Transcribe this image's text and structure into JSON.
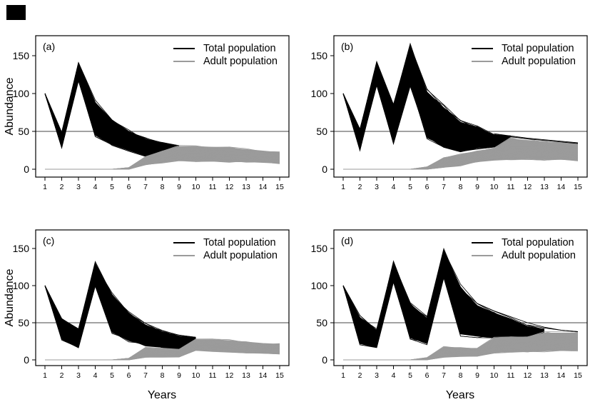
{
  "figure": {
    "ylabel": "Abundance",
    "xlabel": "Years",
    "background": "#ffffff",
    "reference_line_color": "#444444",
    "axis_color": "#000000"
  },
  "chart_data": [
    {
      "id": "a",
      "label": "(a)",
      "type": "line",
      "x_ticks": [
        1,
        2,
        3,
        4,
        5,
        6,
        7,
        8,
        9,
        10,
        11,
        12,
        13,
        14,
        15
      ],
      "y_ticks": [
        0,
        50,
        100,
        150
      ],
      "ylim": [
        0,
        175
      ],
      "reference_line_y": 50,
      "legend": [
        {
          "name": "Total population",
          "color": "#000000"
        },
        {
          "name": "Adult population",
          "color": "#9b9b9b"
        }
      ],
      "series": [
        {
          "name": "Total population",
          "color": "#000000",
          "kind": "ensemble-band",
          "x": [
            1,
            2,
            3,
            4,
            5,
            6,
            7,
            8,
            9
          ],
          "lower": [
            100,
            29,
            117,
            45,
            33,
            25,
            18,
            16,
            26
          ],
          "upper": [
            100,
            48,
            140,
            88,
            65,
            50,
            40,
            34,
            31
          ]
        },
        {
          "name": "Adult population",
          "color": "#9b9b9b",
          "kind": "ensemble-band",
          "x": [
            1,
            2,
            3,
            4,
            5,
            6,
            7,
            8,
            9,
            10,
            11,
            12,
            13,
            14,
            15
          ],
          "lower": [
            0,
            0,
            0,
            0,
            0,
            0,
            6,
            9,
            12,
            11,
            11,
            10,
            10,
            9,
            8
          ],
          "upper": [
            0,
            0,
            0,
            0,
            0,
            2,
            16,
            24,
            30,
            30,
            29,
            28,
            26,
            24,
            22
          ]
        }
      ],
      "extra_lines": []
    },
    {
      "id": "b",
      "label": "(b)",
      "type": "line",
      "x_ticks": [
        1,
        2,
        3,
        4,
        5,
        6,
        7,
        8,
        9,
        10,
        11,
        12,
        13,
        14,
        15
      ],
      "y_ticks": [
        0,
        50,
        100,
        150
      ],
      "ylim": [
        0,
        175
      ],
      "reference_line_y": 50,
      "legend": [
        {
          "name": "Total population",
          "color": "#000000"
        },
        {
          "name": "Adult population",
          "color": "#9b9b9b"
        }
      ],
      "series": [
        {
          "name": "Total population",
          "color": "#000000",
          "kind": "ensemble-band",
          "x": [
            1,
            2,
            3,
            4,
            5,
            6,
            7,
            8,
            9,
            10,
            11
          ],
          "lower": [
            100,
            26,
            112,
            36,
            112,
            43,
            29,
            23,
            28,
            30,
            36
          ],
          "upper": [
            100,
            52,
            140,
            85,
            162,
            102,
            81,
            62,
            55,
            45,
            44
          ]
        },
        {
          "name": "Adult population",
          "color": "#9b9b9b",
          "kind": "ensemble-band",
          "x": [
            1,
            2,
            3,
            4,
            5,
            6,
            7,
            8,
            9,
            10,
            11,
            12,
            13,
            14,
            15
          ],
          "lower": [
            0,
            0,
            0,
            0,
            0,
            0,
            3,
            5,
            10,
            12,
            13,
            14,
            13,
            13,
            12
          ],
          "upper": [
            0,
            0,
            0,
            0,
            0,
            3,
            15,
            19,
            24,
            27,
            40,
            38,
            36,
            35,
            33
          ]
        }
      ],
      "extra_lines": [
        {
          "color": "#000000",
          "x": [
            10,
            11,
            12,
            13,
            14,
            15
          ],
          "y": [
            47,
            44,
            41,
            39,
            37,
            35
          ]
        },
        {
          "color": "#000000",
          "x": [
            11,
            12,
            13,
            14,
            15
          ],
          "y": [
            43,
            40,
            38,
            36,
            34
          ]
        }
      ]
    },
    {
      "id": "c",
      "label": "(c)",
      "type": "line",
      "x_ticks": [
        1,
        2,
        3,
        4,
        5,
        6,
        7,
        8,
        9,
        10,
        11,
        12,
        13,
        14,
        15
      ],
      "y_ticks": [
        0,
        50,
        100,
        150
      ],
      "ylim": [
        0,
        175
      ],
      "reference_line_y": 50,
      "legend": [
        {
          "name": "Total population",
          "color": "#000000"
        },
        {
          "name": "Adult population",
          "color": "#9b9b9b"
        }
      ],
      "series": [
        {
          "name": "Total population",
          "color": "#000000",
          "kind": "ensemble-band",
          "x": [
            1,
            2,
            3,
            4,
            5,
            6,
            7,
            8,
            9,
            10
          ],
          "lower": [
            100,
            28,
            17,
            100,
            38,
            26,
            20,
            17,
            14,
            24
          ],
          "upper": [
            100,
            55,
            40,
            130,
            88,
            62,
            47,
            38,
            32,
            30
          ]
        },
        {
          "name": "Adult population",
          "color": "#9b9b9b",
          "kind": "ensemble-band",
          "x": [
            1,
            2,
            3,
            4,
            5,
            6,
            7,
            8,
            9,
            10,
            11,
            12,
            13,
            14,
            15
          ],
          "lower": [
            0,
            0,
            0,
            0,
            0,
            0,
            4,
            4,
            4,
            13,
            12,
            11,
            10,
            9,
            8
          ],
          "upper": [
            0,
            0,
            0,
            0,
            0,
            2,
            16,
            15,
            14,
            27,
            27,
            26,
            24,
            22,
            21
          ]
        }
      ],
      "extra_lines": []
    },
    {
      "id": "d",
      "label": "(d)",
      "type": "line",
      "x_ticks": [
        1,
        2,
        3,
        4,
        5,
        6,
        7,
        8,
        9,
        10,
        11,
        12,
        13,
        14,
        15
      ],
      "y_ticks": [
        0,
        50,
        100,
        150
      ],
      "ylim": [
        0,
        175
      ],
      "reference_line_y": 50,
      "legend": [
        {
          "name": "Total population",
          "color": "#000000"
        },
        {
          "name": "Adult population",
          "color": "#9b9b9b"
        }
      ],
      "series": [
        {
          "name": "Total population",
          "color": "#000000",
          "kind": "ensemble-band",
          "x": [
            1,
            2,
            3,
            4,
            5,
            6,
            7,
            8,
            9,
            10,
            11,
            12,
            13
          ],
          "lower": [
            100,
            22,
            17,
            105,
            30,
            22,
            112,
            35,
            32,
            30,
            28,
            27,
            33
          ],
          "upper": [
            100,
            57,
            40,
            131,
            75,
            56,
            147,
            97,
            73,
            63,
            55,
            45,
            41
          ]
        },
        {
          "name": "Adult population",
          "color": "#9b9b9b",
          "kind": "ensemble-band",
          "x": [
            1,
            2,
            3,
            4,
            5,
            6,
            7,
            8,
            9,
            10,
            11,
            12,
            13,
            14,
            15
          ],
          "lower": [
            0,
            0,
            0,
            0,
            0,
            0,
            4,
            5,
            5,
            10,
            11,
            11,
            12,
            13,
            13
          ],
          "upper": [
            0,
            0,
            0,
            0,
            0,
            3,
            17,
            16,
            15,
            29,
            30,
            31,
            36,
            36,
            36
          ]
        }
      ],
      "extra_lines": [
        {
          "color": "#000000",
          "x": [
            9,
            10,
            11,
            12,
            13,
            14,
            15
          ],
          "y": [
            76,
            66,
            58,
            50,
            44,
            40,
            38
          ]
        },
        {
          "color": "#000000",
          "x": [
            12,
            13,
            14,
            15
          ],
          "y": [
            47,
            43,
            40,
            38
          ]
        }
      ]
    }
  ]
}
